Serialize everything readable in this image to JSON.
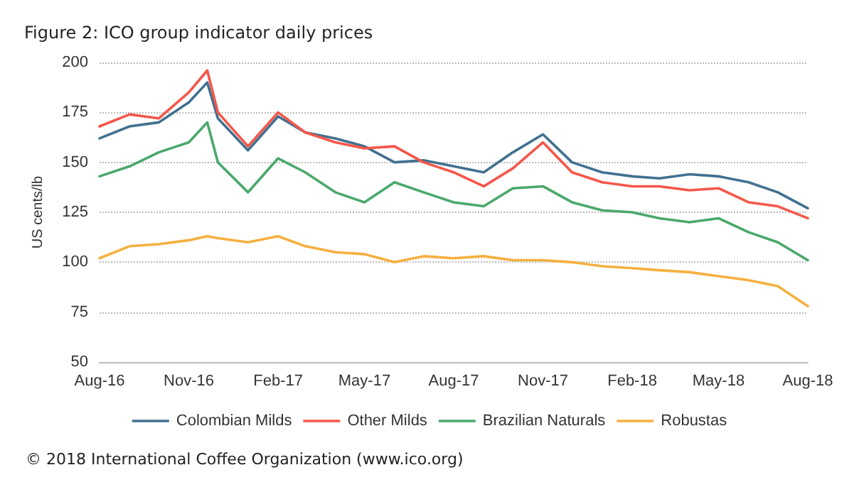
{
  "chart_data": {
    "type": "line",
    "title": "Figure 2: ICO group indicator daily prices",
    "ylabel": "US cents/lb",
    "x": [
      "2016-08-01",
      "2016-09-01",
      "2016-10-01",
      "2016-11-01",
      "2016-11-20",
      "2016-12-01",
      "2017-01-01",
      "2017-02-01",
      "2017-03-01",
      "2017-04-01",
      "2017-05-01",
      "2017-06-01",
      "2017-07-01",
      "2017-08-01",
      "2017-09-01",
      "2017-10-01",
      "2017-11-01",
      "2017-12-01",
      "2018-01-01",
      "2018-02-01",
      "2018-03-01",
      "2018-04-01",
      "2018-05-01",
      "2018-06-01",
      "2018-07-01",
      "2018-08-01"
    ],
    "series": [
      {
        "name": "Colombian Milds",
        "color": "#41718f",
        "values": [
          162,
          168,
          170,
          180,
          190,
          172,
          156,
          173,
          165,
          162,
          158,
          150,
          151,
          148,
          145,
          155,
          164,
          150,
          145,
          143,
          142,
          144,
          143,
          140,
          135,
          127
        ]
      },
      {
        "name": "Other Milds",
        "color": "#f4574a",
        "values": [
          168,
          174,
          172,
          185,
          196,
          175,
          158,
          175,
          165,
          160,
          157,
          158,
          150,
          145,
          138,
          147,
          160,
          145,
          140,
          138,
          138,
          136,
          137,
          130,
          128,
          122
        ]
      },
      {
        "name": "Brazilian Naturals",
        "color": "#4aa86b",
        "values": [
          143,
          148,
          155,
          160,
          170,
          150,
          135,
          152,
          145,
          135,
          130,
          140,
          135,
          130,
          128,
          137,
          138,
          130,
          126,
          125,
          122,
          120,
          122,
          115,
          110,
          101
        ]
      },
      {
        "name": "Robustas",
        "color": "#f5b040",
        "values": [
          102,
          108,
          109,
          111,
          113,
          112,
          110,
          113,
          108,
          105,
          104,
          100,
          103,
          102,
          103,
          101,
          101,
          100,
          98,
          97,
          96,
          95,
          93,
          91,
          88,
          78
        ]
      }
    ],
    "xlim": [
      "2016-08-01",
      "2018-08-01"
    ],
    "xticks": [
      {
        "value": "2016-08-01",
        "label": "Aug-16"
      },
      {
        "value": "2016-11-01",
        "label": "Nov-16"
      },
      {
        "value": "2017-02-01",
        "label": "Feb-17"
      },
      {
        "value": "2017-05-01",
        "label": "May-17"
      },
      {
        "value": "2017-08-01",
        "label": "Aug-17"
      },
      {
        "value": "2017-11-01",
        "label": "Nov-17"
      },
      {
        "value": "2018-02-01",
        "label": "Feb-18"
      },
      {
        "value": "2018-05-01",
        "label": "May-18"
      },
      {
        "value": "2018-08-01",
        "label": "Aug-18"
      }
    ],
    "ylim": [
      50,
      200
    ],
    "yticks": [
      50,
      75,
      100,
      125,
      150,
      175,
      200
    ],
    "grid": "y",
    "legend": "bottom",
    "marker": "none",
    "line_style": "solid",
    "annotations": [
      "© 2018 International Coffee Organization (www.ico.org)"
    ]
  }
}
